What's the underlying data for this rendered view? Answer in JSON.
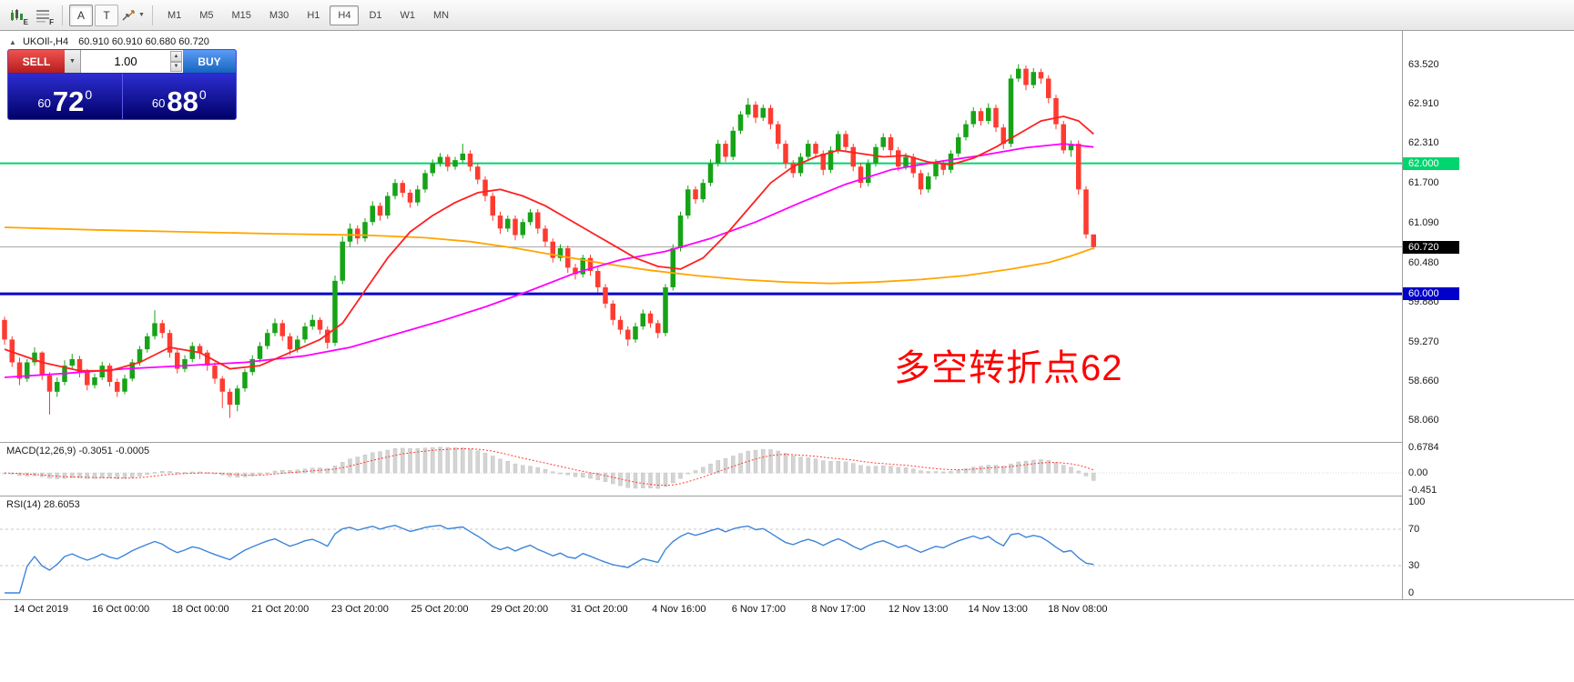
{
  "glyphs": {
    "down_arrow": "▼",
    "up_small": "▲",
    "collapse": "▲"
  },
  "toolbar": {
    "icon_badges": [
      "E",
      "F"
    ],
    "buttons": {
      "annotate": "A",
      "text_tool": "T"
    },
    "timeframes": [
      "M1",
      "M5",
      "M15",
      "M30",
      "H1",
      "H4",
      "D1",
      "W1",
      "MN"
    ],
    "active_timeframe": "H4"
  },
  "chart": {
    "header_symbol": "UKOIl-,H4",
    "header_ohlc": "60.910 60.910 60.680 60.720",
    "annotation": "多空转折点62"
  },
  "trade_panel": {
    "sell_label": "SELL",
    "buy_label": "BUY",
    "volume": "1.00",
    "sell_price": {
      "small": "60",
      "big": "72",
      "sup": "0"
    },
    "buy_price": {
      "small": "60",
      "big": "88",
      "sup": "0"
    }
  },
  "price_scale": {
    "labels": [
      "63.520",
      "62.910",
      "62.310",
      "61.700",
      "61.090",
      "60.480",
      "59.880",
      "59.270",
      "58.660",
      "58.060"
    ],
    "markers": [
      {
        "label": "62.000",
        "price": 62.0,
        "bg": "#00d66e",
        "fg": "#ffffff"
      },
      {
        "label": "60.720",
        "price": 60.72,
        "bg": "#000000",
        "fg": "#ffffff"
      },
      {
        "label": "60.000",
        "price": 60.0,
        "bg": "#0000cd",
        "fg": "#ffffff"
      }
    ]
  },
  "macd_panel": {
    "label": "MACD(12,26,9) -0.3051 -0.0005",
    "scale": [
      {
        "label": "0.6784",
        "value": 0.6784
      },
      {
        "label": "0.00",
        "value": 0
      },
      {
        "label": "-0.451",
        "value": -0.451
      }
    ]
  },
  "rsi_panel": {
    "label": "RSI(14) 28.6053",
    "scale": [
      {
        "label": "100",
        "value": 100
      },
      {
        "label": "70",
        "value": 70
      },
      {
        "label": "30",
        "value": 30
      },
      {
        "label": "0",
        "value": 0
      }
    ],
    "levels": [
      70,
      30
    ]
  },
  "time_axis": [
    "14 Oct 2019",
    "16 Oct 00:00",
    "18 Oct 00:00",
    "21 Oct 20:00",
    "23 Oct 20:00",
    "25 Oct 20:00",
    "29 Oct 20:00",
    "31 Oct 20:00",
    "4 Nov 16:00",
    "6 Nov 17:00",
    "8 Nov 17:00",
    "12 Nov 13:00",
    "14 Nov 13:00",
    "18 Nov 08:00"
  ],
  "chart_data": {
    "type": "candlestick",
    "symbol": "UKOIl-",
    "timeframe": "H4",
    "y_range": [
      57.73,
      64.03
    ],
    "colors": {
      "up": "#17a317",
      "down": "#fe3b30",
      "macd_bar": "#d4d4d4",
      "macd_signal": "#ff3b30",
      "rsi_line": "#3d85d9"
    },
    "hlines": [
      {
        "price": 60.72,
        "color": "#ababab",
        "width": 1
      },
      {
        "price": 62.0,
        "color": "#00d66e",
        "width": 2
      },
      {
        "price": 60.0,
        "color": "#0000cd",
        "width": 3
      }
    ],
    "ohlc": [
      [
        59.6,
        59.65,
        59.22,
        59.3
      ],
      [
        59.3,
        59.35,
        58.88,
        58.95
      ],
      [
        58.95,
        59.02,
        58.6,
        58.7
      ],
      [
        58.7,
        59.0,
        58.65,
        58.95
      ],
      [
        58.95,
        59.18,
        58.9,
        59.1
      ],
      [
        59.1,
        59.12,
        58.68,
        58.75
      ],
      [
        58.75,
        58.8,
        58.15,
        58.5
      ],
      [
        58.5,
        58.72,
        58.42,
        58.65
      ],
      [
        58.65,
        58.98,
        58.6,
        58.9
      ],
      [
        58.9,
        59.08,
        58.85,
        59.0
      ],
      [
        59.0,
        59.05,
        58.72,
        58.8
      ],
      [
        58.8,
        58.85,
        58.52,
        58.6
      ],
      [
        58.6,
        58.78,
        58.55,
        58.72
      ],
      [
        58.72,
        58.96,
        58.68,
        58.9
      ],
      [
        58.9,
        58.94,
        58.58,
        58.65
      ],
      [
        58.65,
        58.7,
        58.42,
        58.5
      ],
      [
        58.5,
        58.76,
        58.46,
        58.7
      ],
      [
        58.7,
        59.0,
        58.66,
        58.95
      ],
      [
        58.95,
        59.2,
        58.9,
        59.15
      ],
      [
        59.15,
        59.4,
        59.1,
        59.35
      ],
      [
        59.35,
        59.75,
        59.3,
        59.55
      ],
      [
        59.55,
        59.6,
        59.32,
        59.4
      ],
      [
        59.4,
        59.45,
        59.02,
        59.1
      ],
      [
        59.1,
        59.15,
        58.78,
        58.85
      ],
      [
        58.85,
        59.06,
        58.8,
        59.0
      ],
      [
        59.0,
        59.26,
        58.95,
        59.2
      ],
      [
        59.2,
        59.24,
        59.0,
        59.1
      ],
      [
        59.1,
        59.14,
        58.82,
        58.9
      ],
      [
        58.9,
        58.95,
        58.62,
        58.7
      ],
      [
        58.7,
        58.74,
        58.25,
        58.5
      ],
      [
        58.5,
        58.55,
        58.1,
        58.3
      ],
      [
        58.3,
        58.6,
        58.2,
        58.55
      ],
      [
        58.55,
        58.85,
        58.5,
        58.8
      ],
      [
        58.8,
        59.06,
        58.75,
        59.0
      ],
      [
        59.0,
        59.26,
        58.95,
        59.2
      ],
      [
        59.2,
        59.46,
        59.15,
        59.4
      ],
      [
        59.4,
        59.62,
        59.35,
        59.55
      ],
      [
        59.55,
        59.6,
        59.28,
        59.35
      ],
      [
        59.35,
        59.4,
        59.06,
        59.15
      ],
      [
        59.15,
        59.36,
        59.1,
        59.3
      ],
      [
        59.3,
        59.56,
        59.25,
        59.5
      ],
      [
        59.5,
        59.68,
        59.45,
        59.6
      ],
      [
        59.6,
        59.64,
        59.38,
        59.45
      ],
      [
        59.45,
        59.5,
        59.16,
        59.25
      ],
      [
        59.25,
        60.28,
        59.2,
        60.2
      ],
      [
        60.2,
        60.88,
        60.15,
        60.8
      ],
      [
        60.8,
        61.08,
        60.72,
        61.0
      ],
      [
        61.0,
        61.05,
        60.76,
        60.85
      ],
      [
        60.85,
        61.16,
        60.8,
        61.1
      ],
      [
        61.1,
        61.42,
        61.05,
        61.35
      ],
      [
        61.35,
        61.4,
        61.12,
        61.2
      ],
      [
        61.2,
        61.56,
        61.15,
        61.5
      ],
      [
        61.5,
        61.76,
        61.45,
        61.7
      ],
      [
        61.7,
        61.74,
        61.48,
        61.55
      ],
      [
        61.55,
        61.6,
        61.32,
        61.4
      ],
      [
        61.4,
        61.66,
        61.35,
        61.6
      ],
      [
        61.6,
        61.9,
        61.55,
        61.85
      ],
      [
        61.85,
        62.06,
        61.8,
        62.0
      ],
      [
        62.0,
        62.16,
        61.95,
        62.1
      ],
      [
        62.1,
        62.14,
        61.88,
        61.95
      ],
      [
        61.95,
        62.1,
        61.9,
        62.05
      ],
      [
        62.05,
        62.3,
        62.0,
        62.15
      ],
      [
        62.15,
        62.2,
        61.88,
        61.95
      ],
      [
        61.95,
        62.0,
        61.68,
        61.75
      ],
      [
        61.75,
        61.8,
        61.42,
        61.5
      ],
      [
        61.5,
        61.55,
        61.12,
        61.2
      ],
      [
        61.2,
        61.26,
        60.92,
        61.0
      ],
      [
        61.0,
        61.2,
        60.95,
        61.15
      ],
      [
        61.15,
        61.2,
        60.82,
        60.9
      ],
      [
        60.9,
        61.15,
        60.85,
        61.1
      ],
      [
        61.1,
        61.3,
        61.05,
        61.25
      ],
      [
        61.25,
        61.3,
        60.92,
        61.0
      ],
      [
        61.0,
        61.05,
        60.72,
        60.8
      ],
      [
        60.8,
        60.85,
        60.48,
        60.55
      ],
      [
        60.55,
        60.76,
        60.5,
        60.7
      ],
      [
        60.7,
        60.74,
        60.32,
        60.4
      ],
      [
        60.4,
        60.46,
        60.22,
        60.3
      ],
      [
        60.3,
        60.6,
        60.25,
        60.55
      ],
      [
        60.55,
        60.6,
        60.28,
        60.35
      ],
      [
        60.35,
        60.4,
        60.02,
        60.1
      ],
      [
        60.1,
        60.15,
        59.78,
        59.85
      ],
      [
        59.85,
        59.9,
        59.52,
        59.6
      ],
      [
        59.6,
        59.66,
        59.38,
        59.45
      ],
      [
        59.45,
        59.5,
        59.2,
        59.3
      ],
      [
        59.3,
        59.56,
        59.25,
        59.5
      ],
      [
        59.5,
        59.76,
        59.45,
        59.7
      ],
      [
        59.7,
        59.74,
        59.48,
        59.55
      ],
      [
        59.55,
        59.6,
        59.32,
        59.4
      ],
      [
        59.4,
        60.15,
        59.35,
        60.1
      ],
      [
        60.1,
        60.76,
        60.05,
        60.7
      ],
      [
        60.7,
        61.26,
        60.65,
        61.2
      ],
      [
        61.2,
        61.66,
        61.15,
        61.6
      ],
      [
        61.6,
        61.65,
        61.38,
        61.45
      ],
      [
        61.45,
        61.76,
        61.4,
        61.7
      ],
      [
        61.7,
        62.06,
        61.65,
        62.0
      ],
      [
        62.0,
        62.36,
        61.95,
        62.3
      ],
      [
        62.3,
        62.35,
        62.02,
        62.1
      ],
      [
        62.1,
        62.56,
        62.05,
        62.5
      ],
      [
        62.5,
        62.8,
        62.45,
        62.75
      ],
      [
        62.75,
        63.0,
        62.7,
        62.9
      ],
      [
        62.9,
        62.95,
        62.62,
        62.7
      ],
      [
        62.7,
        62.9,
        62.65,
        62.85
      ],
      [
        62.85,
        62.9,
        62.52,
        62.6
      ],
      [
        62.6,
        62.65,
        62.22,
        62.3
      ],
      [
        62.3,
        62.35,
        61.92,
        62.0
      ],
      [
        62.0,
        62.05,
        61.78,
        61.85
      ],
      [
        61.85,
        62.16,
        61.8,
        62.1
      ],
      [
        62.1,
        62.36,
        62.05,
        62.3
      ],
      [
        62.3,
        62.34,
        62.08,
        62.15
      ],
      [
        62.15,
        62.2,
        61.82,
        61.9
      ],
      [
        61.9,
        62.26,
        61.85,
        62.2
      ],
      [
        62.2,
        62.5,
        62.15,
        62.45
      ],
      [
        62.45,
        62.5,
        62.18,
        62.25
      ],
      [
        62.25,
        62.3,
        61.88,
        61.95
      ],
      [
        61.95,
        62.0,
        61.62,
        61.7
      ],
      [
        61.7,
        62.06,
        61.65,
        62.0
      ],
      [
        62.0,
        62.3,
        61.95,
        62.25
      ],
      [
        62.25,
        62.46,
        62.2,
        62.4
      ],
      [
        62.4,
        62.45,
        62.12,
        62.2
      ],
      [
        62.2,
        62.25,
        61.88,
        61.95
      ],
      [
        61.95,
        62.16,
        61.9,
        62.1
      ],
      [
        62.1,
        62.15,
        61.78,
        61.85
      ],
      [
        61.85,
        61.9,
        61.52,
        61.6
      ],
      [
        61.6,
        61.86,
        61.55,
        61.8
      ],
      [
        61.8,
        62.06,
        61.75,
        62.0
      ],
      [
        62.0,
        62.05,
        61.82,
        61.9
      ],
      [
        61.9,
        62.2,
        61.85,
        62.15
      ],
      [
        62.15,
        62.46,
        62.1,
        62.4
      ],
      [
        62.4,
        62.66,
        62.35,
        62.6
      ],
      [
        62.6,
        62.86,
        62.55,
        62.8
      ],
      [
        62.8,
        62.85,
        62.58,
        62.65
      ],
      [
        62.65,
        62.92,
        62.6,
        62.85
      ],
      [
        62.85,
        62.9,
        62.48,
        62.55
      ],
      [
        62.55,
        62.6,
        62.22,
        62.3
      ],
      [
        62.3,
        63.36,
        62.25,
        63.3
      ],
      [
        63.3,
        63.52,
        63.25,
        63.45
      ],
      [
        63.45,
        63.5,
        63.12,
        63.2
      ],
      [
        63.2,
        63.46,
        63.15,
        63.4
      ],
      [
        63.4,
        63.45,
        63.22,
        63.3
      ],
      [
        63.3,
        63.35,
        62.92,
        63.0
      ],
      [
        63.0,
        63.05,
        62.52,
        62.6
      ],
      [
        62.6,
        62.65,
        62.15,
        62.2
      ],
      [
        62.2,
        62.35,
        62.1,
        62.3
      ],
      [
        62.3,
        62.35,
        61.52,
        61.6
      ],
      [
        61.6,
        61.65,
        60.85,
        60.91
      ],
      [
        60.91,
        60.91,
        60.68,
        60.72
      ]
    ],
    "moving_averages": [
      {
        "name": "ma-orange",
        "color": "#ffa500",
        "points": [
          [
            0,
            61.02
          ],
          [
            12,
            60.98
          ],
          [
            24,
            60.95
          ],
          [
            36,
            60.92
          ],
          [
            48,
            60.9
          ],
          [
            56,
            60.86
          ],
          [
            62,
            60.8
          ],
          [
            68,
            60.7
          ],
          [
            74,
            60.58
          ],
          [
            80,
            60.46
          ],
          [
            86,
            60.36
          ],
          [
            92,
            60.28
          ],
          [
            98,
            60.22
          ],
          [
            104,
            60.18
          ],
          [
            110,
            60.16
          ],
          [
            116,
            60.18
          ],
          [
            122,
            60.22
          ],
          [
            128,
            60.28
          ],
          [
            134,
            60.38
          ],
          [
            139,
            60.48
          ],
          [
            142,
            60.58
          ],
          [
            145,
            60.7
          ]
        ]
      },
      {
        "name": "ma-magenta",
        "color": "#ff00ff",
        "points": [
          [
            0,
            58.72
          ],
          [
            8,
            58.78
          ],
          [
            16,
            58.85
          ],
          [
            24,
            58.9
          ],
          [
            32,
            58.95
          ],
          [
            40,
            59.05
          ],
          [
            46,
            59.18
          ],
          [
            52,
            59.38
          ],
          [
            58,
            59.58
          ],
          [
            64,
            59.8
          ],
          [
            70,
            60.05
          ],
          [
            76,
            60.32
          ],
          [
            82,
            60.52
          ],
          [
            88,
            60.65
          ],
          [
            94,
            60.85
          ],
          [
            100,
            61.1
          ],
          [
            106,
            61.4
          ],
          [
            112,
            61.68
          ],
          [
            118,
            61.9
          ],
          [
            124,
            62.02
          ],
          [
            130,
            62.12
          ],
          [
            136,
            62.24
          ],
          [
            141,
            62.3
          ],
          [
            145,
            62.25
          ]
        ]
      },
      {
        "name": "ma-red",
        "color": "#ff2020",
        "points": [
          [
            0,
            59.15
          ],
          [
            5,
            58.95
          ],
          [
            10,
            58.82
          ],
          [
            14,
            58.82
          ],
          [
            18,
            58.95
          ],
          [
            22,
            59.18
          ],
          [
            26,
            59.1
          ],
          [
            30,
            58.85
          ],
          [
            34,
            58.9
          ],
          [
            38,
            59.1
          ],
          [
            42,
            59.3
          ],
          [
            45,
            59.55
          ],
          [
            48,
            60.05
          ],
          [
            51,
            60.55
          ],
          [
            54,
            60.95
          ],
          [
            57,
            61.2
          ],
          [
            60,
            61.4
          ],
          [
            63,
            61.55
          ],
          [
            66,
            61.6
          ],
          [
            69,
            61.5
          ],
          [
            72,
            61.35
          ],
          [
            75,
            61.15
          ],
          [
            78,
            60.95
          ],
          [
            81,
            60.75
          ],
          [
            84,
            60.55
          ],
          [
            87,
            60.42
          ],
          [
            90,
            60.38
          ],
          [
            93,
            60.55
          ],
          [
            96,
            60.9
          ],
          [
            99,
            61.3
          ],
          [
            102,
            61.7
          ],
          [
            105,
            61.95
          ],
          [
            108,
            62.1
          ],
          [
            111,
            62.2
          ],
          [
            114,
            62.15
          ],
          [
            117,
            62.1
          ],
          [
            120,
            62.12
          ],
          [
            123,
            62.02
          ],
          [
            126,
            61.98
          ],
          [
            129,
            62.08
          ],
          [
            132,
            62.25
          ],
          [
            135,
            62.45
          ],
          [
            138,
            62.65
          ],
          [
            141,
            62.72
          ],
          [
            143,
            62.65
          ],
          [
            145,
            62.45
          ]
        ]
      }
    ],
    "indicators": {
      "macd": {
        "fast": 12,
        "slow": 26,
        "signal_period": 9
      },
      "rsi": {
        "period": 14
      }
    }
  }
}
